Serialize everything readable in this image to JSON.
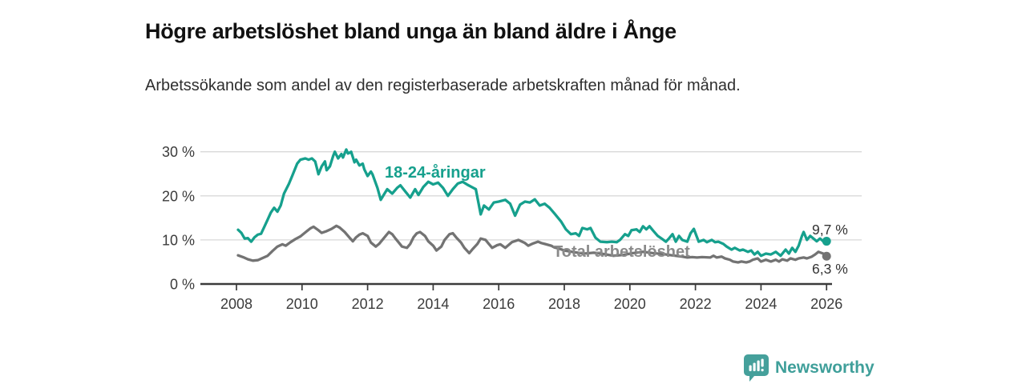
{
  "header": {
    "title": "Högre arbetslöshet bland unga än bland äldre i Ånge",
    "subtitle": "Arbetssökande som andel av den registerbaserade arbetskraften månad för månad."
  },
  "chart_data": {
    "type": "line",
    "title": "Högre arbetslöshet bland unga än bland äldre i Ånge",
    "subtitle": "Arbetssökande som andel av den registerbaserade arbetskraften månad för månad.",
    "grid": true,
    "x_axis": {
      "ticks": [
        2008,
        2010,
        2012,
        2014,
        2016,
        2018,
        2020,
        2022,
        2024,
        2026
      ],
      "range": [
        2008,
        2027.2
      ]
    },
    "y_axis": {
      "unit": "%",
      "ticks": [
        0,
        10,
        20,
        30
      ],
      "tick_labels": [
        "0 %",
        "10 %",
        "20 %",
        "30 %"
      ],
      "range": [
        0,
        32
      ]
    },
    "colors": {
      "young": "#16a08d",
      "total": "#737373",
      "grid": "#d9d9d9",
      "axis": "#3a3a3a"
    },
    "series": [
      {
        "name": "18-24-åringar",
        "color": "#16a08d",
        "end_label": "9,7 %",
        "end_value": 9.7,
        "points": [
          [
            2008.05,
            12.3
          ],
          [
            2008.15,
            11.6
          ],
          [
            2008.25,
            10.3
          ],
          [
            2008.35,
            10.4
          ],
          [
            2008.45,
            9.6
          ],
          [
            2008.55,
            10.6
          ],
          [
            2008.65,
            11.2
          ],
          [
            2008.75,
            11.4
          ],
          [
            2008.85,
            13.0
          ],
          [
            2008.95,
            14.6
          ],
          [
            2009.05,
            16.2
          ],
          [
            2009.15,
            17.3
          ],
          [
            2009.25,
            16.4
          ],
          [
            2009.35,
            17.8
          ],
          [
            2009.45,
            20.5
          ],
          [
            2009.6,
            22.7
          ],
          [
            2009.7,
            24.5
          ],
          [
            2009.85,
            27.3
          ],
          [
            2009.95,
            28.2
          ],
          [
            2010.1,
            28.5
          ],
          [
            2010.2,
            28.2
          ],
          [
            2010.3,
            28.5
          ],
          [
            2010.4,
            27.8
          ],
          [
            2010.45,
            26.4
          ],
          [
            2010.5,
            24.9
          ],
          [
            2010.6,
            26.7
          ],
          [
            2010.7,
            27.8
          ],
          [
            2010.75,
            25.8
          ],
          [
            2010.85,
            26.7
          ],
          [
            2010.95,
            29.1
          ],
          [
            2011.0,
            30.0
          ],
          [
            2011.1,
            28.5
          ],
          [
            2011.2,
            29.5
          ],
          [
            2011.25,
            28.7
          ],
          [
            2011.35,
            30.5
          ],
          [
            2011.4,
            29.6
          ],
          [
            2011.5,
            30.0
          ],
          [
            2011.6,
            27.6
          ],
          [
            2011.65,
            28.2
          ],
          [
            2011.75,
            26.9
          ],
          [
            2011.85,
            27.3
          ],
          [
            2011.9,
            26.0
          ],
          [
            2012.0,
            24.5
          ],
          [
            2012.1,
            25.5
          ],
          [
            2012.15,
            24.9
          ],
          [
            2012.3,
            21.8
          ],
          [
            2012.4,
            19.1
          ],
          [
            2012.5,
            20.3
          ],
          [
            2012.6,
            21.5
          ],
          [
            2012.75,
            20.5
          ],
          [
            2012.9,
            21.8
          ],
          [
            2013.0,
            22.4
          ],
          [
            2013.15,
            21.0
          ],
          [
            2013.3,
            19.6
          ],
          [
            2013.45,
            21.5
          ],
          [
            2013.55,
            20.2
          ],
          [
            2013.7,
            22.0
          ],
          [
            2013.85,
            23.2
          ],
          [
            2014.0,
            22.6
          ],
          [
            2014.15,
            23.0
          ],
          [
            2014.3,
            21.8
          ],
          [
            2014.45,
            20.0
          ],
          [
            2014.6,
            21.5
          ],
          [
            2014.75,
            22.8
          ],
          [
            2014.9,
            23.2
          ],
          [
            2015.05,
            22.5
          ],
          [
            2015.2,
            21.9
          ],
          [
            2015.3,
            21.5
          ],
          [
            2015.45,
            15.8
          ],
          [
            2015.55,
            17.8
          ],
          [
            2015.7,
            16.9
          ],
          [
            2015.85,
            18.5
          ],
          [
            2016.0,
            18.7
          ],
          [
            2016.2,
            19.1
          ],
          [
            2016.35,
            18.2
          ],
          [
            2016.5,
            15.5
          ],
          [
            2016.65,
            18.0
          ],
          [
            2016.8,
            18.7
          ],
          [
            2016.95,
            18.5
          ],
          [
            2017.1,
            19.2
          ],
          [
            2017.25,
            17.8
          ],
          [
            2017.4,
            18.2
          ],
          [
            2017.55,
            17.3
          ],
          [
            2017.7,
            16.0
          ],
          [
            2017.9,
            14.2
          ],
          [
            2018.05,
            12.4
          ],
          [
            2018.2,
            11.3
          ],
          [
            2018.35,
            11.5
          ],
          [
            2018.45,
            10.9
          ],
          [
            2018.55,
            12.7
          ],
          [
            2018.7,
            12.4
          ],
          [
            2018.8,
            12.7
          ],
          [
            2018.95,
            10.5
          ],
          [
            2019.1,
            9.6
          ],
          [
            2019.3,
            9.5
          ],
          [
            2019.45,
            9.6
          ],
          [
            2019.6,
            9.5
          ],
          [
            2019.7,
            10.0
          ],
          [
            2019.85,
            11.3
          ],
          [
            2019.95,
            10.9
          ],
          [
            2020.05,
            12.2
          ],
          [
            2020.2,
            12.4
          ],
          [
            2020.3,
            11.8
          ],
          [
            2020.4,
            13.1
          ],
          [
            2020.5,
            12.4
          ],
          [
            2020.6,
            13.1
          ],
          [
            2020.7,
            12.2
          ],
          [
            2020.85,
            10.9
          ],
          [
            2020.95,
            10.4
          ],
          [
            2021.1,
            9.6
          ],
          [
            2021.2,
            10.4
          ],
          [
            2021.3,
            11.3
          ],
          [
            2021.4,
            9.6
          ],
          [
            2021.5,
            10.9
          ],
          [
            2021.6,
            10.0
          ],
          [
            2021.75,
            9.6
          ],
          [
            2021.85,
            11.5
          ],
          [
            2021.95,
            12.5
          ],
          [
            2022.1,
            9.6
          ],
          [
            2022.25,
            10.0
          ],
          [
            2022.35,
            9.5
          ],
          [
            2022.5,
            10.0
          ],
          [
            2022.6,
            9.5
          ],
          [
            2022.7,
            9.6
          ],
          [
            2022.85,
            9.1
          ],
          [
            2022.95,
            8.5
          ],
          [
            2023.1,
            7.8
          ],
          [
            2023.2,
            8.2
          ],
          [
            2023.35,
            7.6
          ],
          [
            2023.45,
            7.8
          ],
          [
            2023.6,
            7.3
          ],
          [
            2023.7,
            7.6
          ],
          [
            2023.8,
            6.7
          ],
          [
            2023.9,
            7.3
          ],
          [
            2024.0,
            6.4
          ],
          [
            2024.15,
            6.9
          ],
          [
            2024.3,
            6.7
          ],
          [
            2024.45,
            7.3
          ],
          [
            2024.6,
            6.4
          ],
          [
            2024.75,
            7.8
          ],
          [
            2024.85,
            6.9
          ],
          [
            2024.95,
            8.2
          ],
          [
            2025.05,
            7.3
          ],
          [
            2025.15,
            8.7
          ],
          [
            2025.25,
            10.9
          ],
          [
            2025.3,
            11.8
          ],
          [
            2025.4,
            10.0
          ],
          [
            2025.5,
            10.9
          ],
          [
            2025.6,
            10.3
          ],
          [
            2025.7,
            9.7
          ],
          [
            2025.8,
            10.3
          ],
          [
            2025.9,
            9.7
          ],
          [
            2026.0,
            9.7
          ]
        ]
      },
      {
        "name": "Total arbetslöshet",
        "color": "#737373",
        "end_label": "6,3 %",
        "end_value": 6.3,
        "points": [
          [
            2008.05,
            6.5
          ],
          [
            2008.2,
            6.1
          ],
          [
            2008.35,
            5.6
          ],
          [
            2008.5,
            5.3
          ],
          [
            2008.65,
            5.4
          ],
          [
            2008.8,
            5.9
          ],
          [
            2008.95,
            6.4
          ],
          [
            2009.1,
            7.5
          ],
          [
            2009.25,
            8.5
          ],
          [
            2009.4,
            9.0
          ],
          [
            2009.5,
            8.7
          ],
          [
            2009.65,
            9.5
          ],
          [
            2009.8,
            10.2
          ],
          [
            2009.95,
            10.8
          ],
          [
            2010.1,
            11.7
          ],
          [
            2010.25,
            12.6
          ],
          [
            2010.35,
            13.0
          ],
          [
            2010.5,
            12.2
          ],
          [
            2010.6,
            11.6
          ],
          [
            2010.75,
            12.0
          ],
          [
            2010.9,
            12.5
          ],
          [
            2011.05,
            13.2
          ],
          [
            2011.15,
            12.8
          ],
          [
            2011.3,
            11.8
          ],
          [
            2011.45,
            10.5
          ],
          [
            2011.55,
            9.7
          ],
          [
            2011.65,
            10.6
          ],
          [
            2011.75,
            11.2
          ],
          [
            2011.85,
            11.5
          ],
          [
            2012.0,
            10.9
          ],
          [
            2012.1,
            9.4
          ],
          [
            2012.25,
            8.5
          ],
          [
            2012.35,
            9.1
          ],
          [
            2012.45,
            10.0
          ],
          [
            2012.55,
            10.9
          ],
          [
            2012.65,
            11.8
          ],
          [
            2012.75,
            11.3
          ],
          [
            2012.85,
            10.3
          ],
          [
            2012.95,
            9.4
          ],
          [
            2013.05,
            8.5
          ],
          [
            2013.2,
            8.2
          ],
          [
            2013.3,
            9.1
          ],
          [
            2013.4,
            10.6
          ],
          [
            2013.5,
            11.5
          ],
          [
            2013.6,
            11.8
          ],
          [
            2013.75,
            10.9
          ],
          [
            2013.85,
            9.7
          ],
          [
            2014.0,
            8.7
          ],
          [
            2014.1,
            7.6
          ],
          [
            2014.25,
            8.5
          ],
          [
            2014.35,
            10.0
          ],
          [
            2014.5,
            11.3
          ],
          [
            2014.6,
            11.5
          ],
          [
            2014.7,
            10.6
          ],
          [
            2014.85,
            9.4
          ],
          [
            2014.95,
            8.2
          ],
          [
            2015.1,
            7.0
          ],
          [
            2015.2,
            7.9
          ],
          [
            2015.35,
            9.1
          ],
          [
            2015.45,
            10.3
          ],
          [
            2015.6,
            10.0
          ],
          [
            2015.7,
            9.1
          ],
          [
            2015.8,
            8.2
          ],
          [
            2015.95,
            8.8
          ],
          [
            2016.05,
            9.0
          ],
          [
            2016.2,
            8.2
          ],
          [
            2016.4,
            9.5
          ],
          [
            2016.6,
            10.0
          ],
          [
            2016.8,
            9.3
          ],
          [
            2016.9,
            8.7
          ],
          [
            2017.05,
            9.2
          ],
          [
            2017.2,
            9.6
          ],
          [
            2017.3,
            9.3
          ],
          [
            2017.4,
            9.1
          ],
          [
            2017.6,
            8.7
          ],
          [
            2017.7,
            8.3
          ],
          [
            2017.85,
            8.0
          ],
          [
            2018.0,
            7.6
          ],
          [
            2018.3,
            7.2
          ],
          [
            2018.6,
            6.9
          ],
          [
            2018.9,
            7.1
          ],
          [
            2019.2,
            6.8
          ],
          [
            2019.5,
            6.4
          ],
          [
            2019.8,
            6.6
          ],
          [
            2020.1,
            7.0
          ],
          [
            2020.4,
            7.3
          ],
          [
            2020.7,
            7.0
          ],
          [
            2021.0,
            6.8
          ],
          [
            2021.3,
            6.5
          ],
          [
            2021.6,
            6.2
          ],
          [
            2021.75,
            6.0
          ],
          [
            2021.9,
            6.1
          ],
          [
            2022.05,
            6.0
          ],
          [
            2022.2,
            6.1
          ],
          [
            2022.45,
            6.0
          ],
          [
            2022.55,
            6.4
          ],
          [
            2022.65,
            6.0
          ],
          [
            2022.8,
            6.2
          ],
          [
            2022.9,
            5.8
          ],
          [
            2023.05,
            5.5
          ],
          [
            2023.15,
            5.1
          ],
          [
            2023.3,
            4.9
          ],
          [
            2023.4,
            5.1
          ],
          [
            2023.55,
            4.9
          ],
          [
            2023.65,
            5.1
          ],
          [
            2023.75,
            5.5
          ],
          [
            2023.9,
            5.8
          ],
          [
            2024.0,
            5.1
          ],
          [
            2024.15,
            5.5
          ],
          [
            2024.3,
            5.1
          ],
          [
            2024.45,
            5.5
          ],
          [
            2024.55,
            5.1
          ],
          [
            2024.65,
            5.6
          ],
          [
            2024.8,
            5.3
          ],
          [
            2024.9,
            5.8
          ],
          [
            2025.05,
            5.5
          ],
          [
            2025.15,
            5.8
          ],
          [
            2025.3,
            6.0
          ],
          [
            2025.4,
            5.8
          ],
          [
            2025.55,
            6.2
          ],
          [
            2025.65,
            6.7
          ],
          [
            2025.75,
            7.3
          ],
          [
            2025.9,
            6.9
          ],
          [
            2026.0,
            6.3
          ]
        ]
      }
    ]
  },
  "footer": {
    "brand": "Newsworthy"
  }
}
